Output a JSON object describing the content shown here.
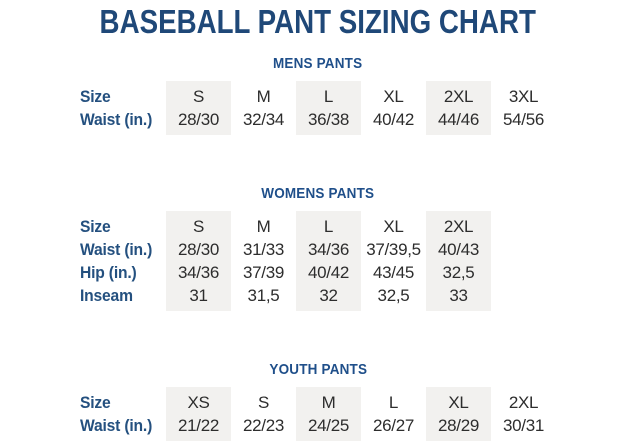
{
  "page": {
    "title": "BASEBALL PANT SIZING CHART"
  },
  "colors": {
    "title_navy": "#1f4878",
    "section_header_blue": "#1f4f8a",
    "row_label_blue": "#24507f",
    "cell_text": "#2d2d2d",
    "shaded_column_bg": "#f2f1ef",
    "page_bg": "#ffffff"
  },
  "sections": [
    {
      "id": "mens",
      "title": "MENS PANTS",
      "rows": [
        {
          "label": "Size",
          "values": [
            "S",
            "M",
            "L",
            "XL",
            "2XL",
            "3XL"
          ]
        },
        {
          "label": "Waist (in.)",
          "values": [
            "28/30",
            "32/34",
            "36/38",
            "40/42",
            "44/46",
            "54/56"
          ]
        }
      ]
    },
    {
      "id": "womens",
      "title": "WOMENS PANTS",
      "rows": [
        {
          "label": "Size",
          "values": [
            "S",
            "M",
            "L",
            "XL",
            "2XL"
          ]
        },
        {
          "label": "Waist (in.)",
          "values": [
            "28/30",
            "31/33",
            "34/36",
            "37/39,5",
            "40/43"
          ]
        },
        {
          "label": "Hip (in.)",
          "values": [
            "34/36",
            "37/39",
            "40/42",
            "43/45",
            "32,5"
          ]
        },
        {
          "label": "Inseam",
          "values": [
            "31",
            "31,5",
            "32",
            "32,5",
            "33"
          ]
        }
      ]
    },
    {
      "id": "youth",
      "title": "YOUTH PANTS",
      "rows": [
        {
          "label": "Size",
          "values": [
            "XS",
            "S",
            "M",
            "L",
            "XL",
            "2XL"
          ]
        },
        {
          "label": "Waist (in.)",
          "values": [
            "21/22",
            "22/23",
            "24/25",
            "26/27",
            "28/29",
            "30/31"
          ]
        }
      ]
    }
  ]
}
